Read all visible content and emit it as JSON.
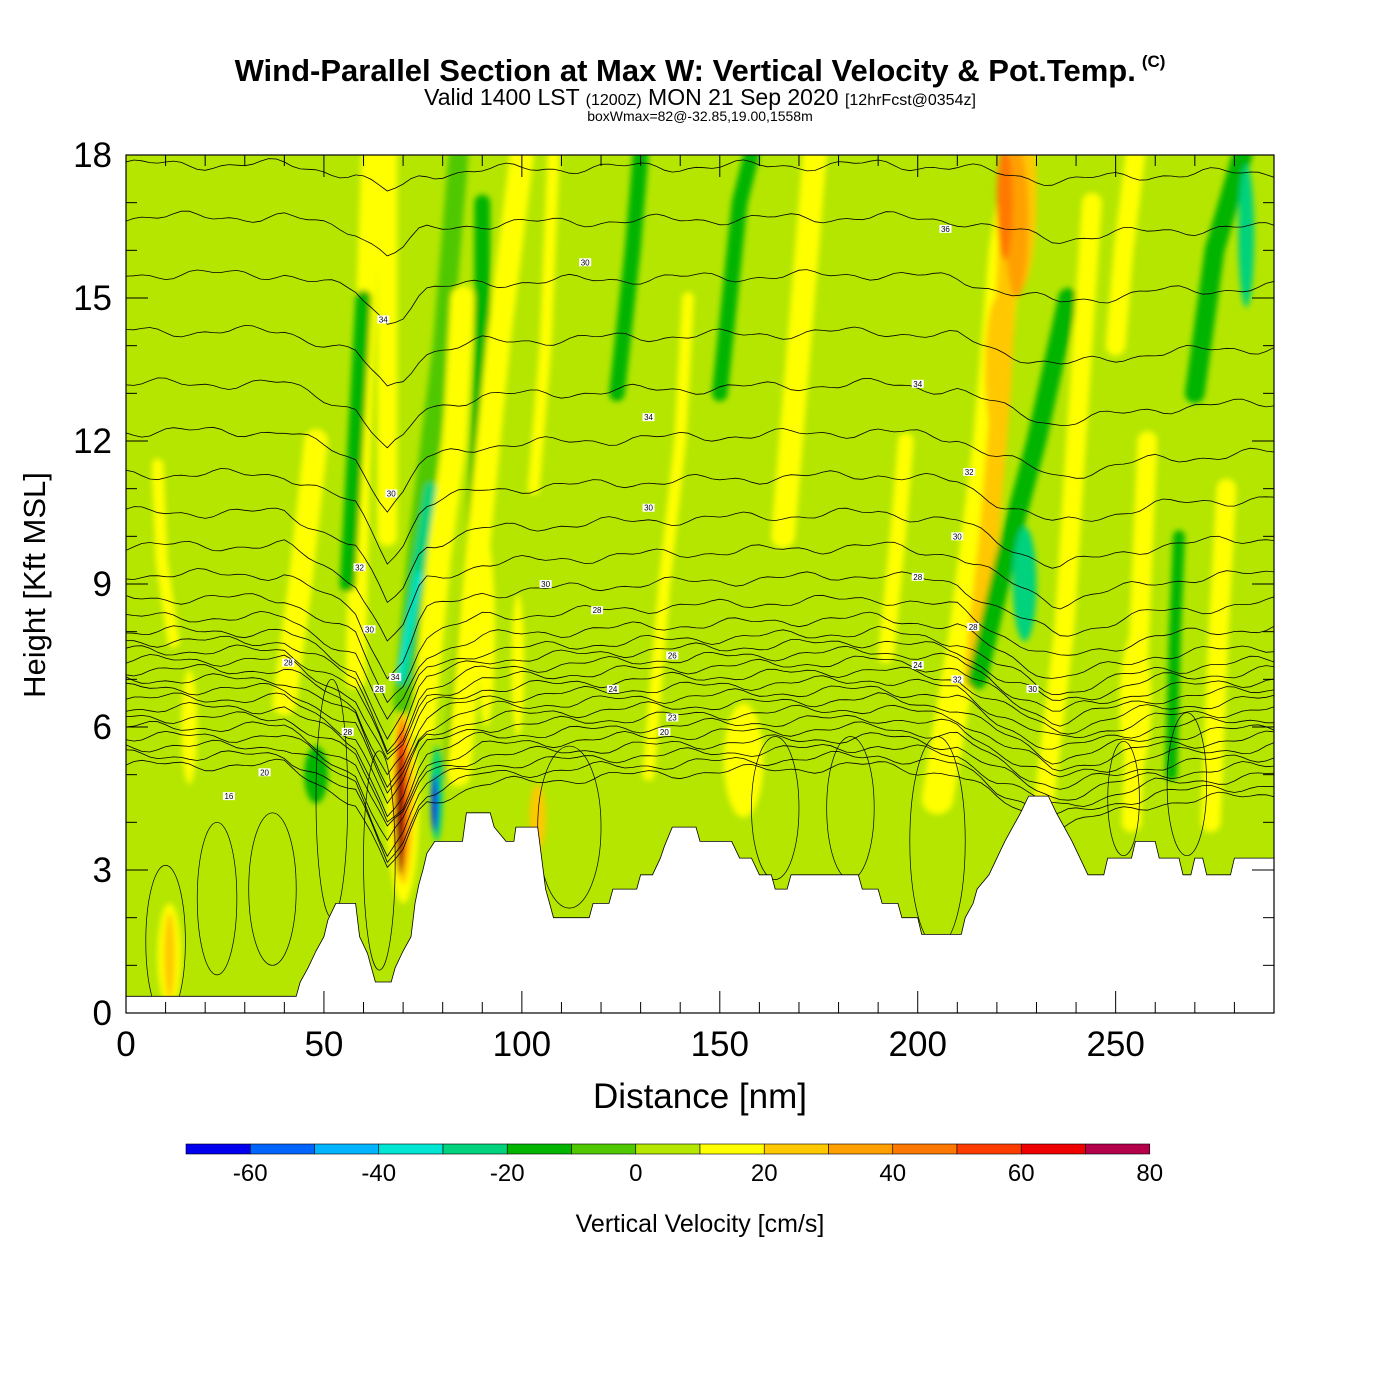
{
  "header": {
    "title": "Wind-Parallel Section at Max W: Vertical Velocity & Pot.Temp.",
    "title_mark": "(C)",
    "valid_prefix": "Valid 1400 LST",
    "valid_zulu": "(1200Z)",
    "valid_date": "MON 21 Sep 2020",
    "forecast": "[12hrFcst@0354z]",
    "box_info": "boxWmax=82@-32.85,19.00,1558m"
  },
  "chart_data": {
    "type": "heatmap",
    "xlabel": "Distance [nm]",
    "ylabel": "Height [Kft MSL]",
    "xlim": [
      0,
      290
    ],
    "ylim": [
      0,
      18
    ],
    "x_ticks": [
      0,
      50,
      100,
      150,
      200,
      250
    ],
    "y_ticks": [
      0,
      3,
      6,
      9,
      12,
      15,
      18
    ],
    "grid": false,
    "background_value": 0,
    "colorbar": {
      "label": "Vertical Velocity [cm/s]",
      "bounds": [
        -70,
        -60,
        -50,
        -40,
        -30,
        -20,
        -10,
        0,
        10,
        20,
        30,
        40,
        50,
        60,
        70,
        80,
        90
      ],
      "tick_values": [
        -60,
        -40,
        -20,
        0,
        20,
        40,
        60,
        80
      ],
      "tick_labels": [
        "-60",
        "-40",
        "-20",
        "0",
        "20",
        "40",
        "60",
        "80"
      ],
      "colors": [
        "#0000ee",
        "#0064ff",
        "#00b4ff",
        "#00e6d2",
        "#00d27d",
        "#00b400",
        "#50c800",
        "#b4e600",
        "#ffff00",
        "#ffc800",
        "#ffa000",
        "#ff7800",
        "#ff3c00",
        "#ee0000",
        "#b4004a"
      ]
    },
    "terrain": [
      [
        0,
        0.35
      ],
      [
        43,
        0.35
      ],
      [
        44,
        0.65
      ],
      [
        46,
        0.95
      ],
      [
        48,
        1.3
      ],
      [
        50,
        1.6
      ],
      [
        51,
        1.95
      ],
      [
        53,
        2.3
      ],
      [
        58,
        2.3
      ],
      [
        59,
        1.6
      ],
      [
        61,
        1.25
      ],
      [
        62,
        0.95
      ],
      [
        63,
        0.65
      ],
      [
        67,
        0.65
      ],
      [
        68,
        0.95
      ],
      [
        70,
        1.3
      ],
      [
        72,
        1.6
      ],
      [
        73,
        2.3
      ],
      [
        74,
        2.7
      ],
      [
        75,
        3.0
      ],
      [
        76,
        3.35
      ],
      [
        78,
        3.6
      ],
      [
        81,
        3.6
      ],
      [
        85,
        3.6
      ],
      [
        86,
        4.2
      ],
      [
        92,
        4.2
      ],
      [
        93,
        3.9
      ],
      [
        96,
        3.6
      ],
      [
        98,
        3.6
      ],
      [
        98.5,
        3.9
      ],
      [
        104,
        3.9
      ],
      [
        106,
        2.6
      ],
      [
        107,
        2.3
      ],
      [
        108,
        2.0
      ],
      [
        117,
        2.0
      ],
      [
        118,
        2.3
      ],
      [
        122,
        2.3
      ],
      [
        123,
        2.6
      ],
      [
        129,
        2.6
      ],
      [
        130,
        2.9
      ],
      [
        133,
        2.9
      ],
      [
        135,
        3.25
      ],
      [
        136,
        3.5
      ],
      [
        138,
        3.9
      ],
      [
        144,
        3.9
      ],
      [
        145,
        3.6
      ],
      [
        153,
        3.6
      ],
      [
        155,
        3.25
      ],
      [
        158,
        3.25
      ],
      [
        160,
        2.9
      ],
      [
        163,
        2.9
      ],
      [
        164,
        2.6
      ],
      [
        167,
        2.6
      ],
      [
        168,
        2.9
      ],
      [
        185,
        2.9
      ],
      [
        186,
        2.6
      ],
      [
        190,
        2.6
      ],
      [
        191,
        2.3
      ],
      [
        195,
        2.3
      ],
      [
        196,
        2.0
      ],
      [
        200,
        2.0
      ],
      [
        201,
        1.65
      ],
      [
        211,
        1.65
      ],
      [
        212,
        2.0
      ],
      [
        214,
        2.3
      ],
      [
        215,
        2.6
      ],
      [
        218,
        2.9
      ],
      [
        220,
        3.25
      ],
      [
        222,
        3.6
      ],
      [
        224,
        3.9
      ],
      [
        226,
        4.2
      ],
      [
        228,
        4.55
      ],
      [
        233,
        4.55
      ],
      [
        235,
        4.2
      ],
      [
        237,
        3.9
      ],
      [
        239,
        3.6
      ],
      [
        241,
        3.25
      ],
      [
        243,
        2.9
      ],
      [
        247,
        2.9
      ],
      [
        248,
        3.25
      ],
      [
        254,
        3.25
      ],
      [
        255,
        3.6
      ],
      [
        260,
        3.6
      ],
      [
        261,
        3.25
      ],
      [
        266,
        3.25
      ],
      [
        267,
        2.9
      ],
      [
        269,
        2.9
      ],
      [
        270,
        3.25
      ],
      [
        272,
        3.25
      ],
      [
        273,
        2.9
      ],
      [
        279,
        2.9
      ],
      [
        280,
        3.25
      ],
      [
        290,
        3.25
      ]
    ],
    "cells": [
      {
        "x": 11,
        "y": 1.2,
        "rx": 3,
        "ry": 1.1,
        "value": 10
      },
      {
        "x": 11,
        "y": 1.2,
        "rx": 1.4,
        "ry": 0.9,
        "value": 20
      },
      {
        "x": 16,
        "y": 6.0,
        "rx": 2,
        "ry": 1.2,
        "value": 10
      },
      {
        "x": 48,
        "y": 5.0,
        "rx": 3,
        "ry": 0.6,
        "value": -15
      },
      {
        "x": 70,
        "y": 4.3,
        "rx": 4,
        "ry": 2.0,
        "value": 10
      },
      {
        "x": 70,
        "y": 4.5,
        "rx": 2.6,
        "ry": 1.8,
        "value": 25
      },
      {
        "x": 69.6,
        "y": 4.6,
        "rx": 1.8,
        "ry": 1.6,
        "value": 45
      },
      {
        "x": 69.4,
        "y": 4.4,
        "rx": 1.2,
        "ry": 1.5,
        "value": 65
      },
      {
        "x": 69.2,
        "y": 4.2,
        "rx": 0.7,
        "ry": 1.3,
        "value": 82
      },
      {
        "x": 78.5,
        "y": 4.6,
        "rx": 1.5,
        "ry": 1.0,
        "value": -30
      },
      {
        "x": 78,
        "y": 4.4,
        "rx": 0.8,
        "ry": 0.6,
        "value": -62
      },
      {
        "x": 91,
        "y": 8.0,
        "rx": 2.2,
        "ry": 2.0,
        "value": 15
      },
      {
        "x": 99,
        "y": 7.3,
        "rx": 1.6,
        "ry": 1.5,
        "value": 15
      },
      {
        "x": 104,
        "y": 4.1,
        "rx": 2.0,
        "ry": 0.7,
        "value": 25
      },
      {
        "x": 156,
        "y": 5.3,
        "rx": 5,
        "ry": 1.2,
        "value": 10
      },
      {
        "x": 166,
        "y": 7.2,
        "rx": 5,
        "ry": 0.4,
        "value": 5
      },
      {
        "x": 226,
        "y": 17.2,
        "rx": 4,
        "ry": 2.0,
        "value": 25
      },
      {
        "x": 225,
        "y": 16.6,
        "rx": 3,
        "ry": 1.6,
        "value": 35
      },
      {
        "x": 222,
        "y": 17.0,
        "rx": 2.0,
        "ry": 1.2,
        "value": 45
      },
      {
        "x": 220,
        "y": 13.5,
        "rx": 3,
        "ry": 1.5,
        "value": 22
      },
      {
        "x": 227,
        "y": 9.0,
        "rx": 3,
        "ry": 1.2,
        "value": -30
      },
      {
        "x": 255,
        "y": 6.5,
        "rx": 4,
        "ry": 1.5,
        "value": 10
      },
      {
        "x": 283,
        "y": 16.3,
        "rx": 2.0,
        "ry": 1.5,
        "value": -25
      }
    ],
    "plumes": [
      {
        "value": 15,
        "width": 3,
        "path": [
          [
            12,
            7.8
          ],
          [
            9,
            9.5
          ],
          [
            8,
            11.5
          ]
        ]
      },
      {
        "value": 10,
        "width": 6,
        "path": [
          [
            40,
            6.5
          ],
          [
            44,
            9
          ],
          [
            48,
            12
          ]
        ]
      },
      {
        "value": 10,
        "width": 5,
        "path": [
          [
            58,
            7
          ],
          [
            59,
            11
          ],
          [
            62,
            18
          ]
        ]
      },
      {
        "value": -15,
        "width": 4,
        "path": [
          [
            56,
            9
          ],
          [
            58,
            12
          ],
          [
            60,
            15
          ]
        ]
      },
      {
        "value": 10,
        "width": 5,
        "path": [
          [
            66,
            10
          ],
          [
            66,
            14
          ],
          [
            66,
            18
          ]
        ]
      },
      {
        "value": -10,
        "width": 5,
        "path": [
          [
            70,
            6.5
          ],
          [
            74,
            10
          ],
          [
            80,
            14
          ],
          [
            84,
            18
          ]
        ]
      },
      {
        "value": -25,
        "width": 3,
        "path": [
          [
            70,
            7
          ],
          [
            74,
            9.5
          ],
          [
            77,
            11
          ]
        ]
      },
      {
        "value": -40,
        "width": 1.4,
        "path": [
          [
            69,
            7
          ],
          [
            72,
            8.3
          ],
          [
            74,
            9.2
          ]
        ]
      },
      {
        "value": 10,
        "width": 6,
        "path": [
          [
            75,
            6
          ],
          [
            79,
            9.5
          ],
          [
            83,
            12
          ],
          [
            85,
            15
          ]
        ]
      },
      {
        "value": -15,
        "width": 4,
        "path": [
          [
            82,
            5
          ],
          [
            88,
            10
          ],
          [
            90,
            14
          ],
          [
            90,
            17
          ]
        ]
      },
      {
        "value": 10,
        "width": 6,
        "path": [
          [
            84,
            5
          ],
          [
            88,
            9
          ],
          [
            94,
            14
          ],
          [
            100,
            18
          ]
        ]
      },
      {
        "value": 10,
        "width": 3,
        "path": [
          [
            103,
            11
          ],
          [
            106,
            14
          ],
          [
            108,
            18
          ]
        ]
      },
      {
        "value": -15,
        "width": 4,
        "path": [
          [
            124,
            13
          ],
          [
            128,
            16
          ],
          [
            130,
            18
          ]
        ]
      },
      {
        "value": 10,
        "width": 3,
        "path": [
          [
            132,
            5
          ],
          [
            136,
            9
          ],
          [
            140,
            12
          ],
          [
            142,
            15
          ]
        ]
      },
      {
        "value": -15,
        "width": 4,
        "path": [
          [
            150,
            13
          ],
          [
            155,
            17
          ],
          [
            158,
            18
          ]
        ]
      },
      {
        "value": 10,
        "width": 6,
        "path": [
          [
            166,
            10
          ],
          [
            170,
            14
          ],
          [
            174,
            18
          ]
        ]
      },
      {
        "value": 10,
        "width": 4,
        "path": [
          [
            192,
            7.5
          ],
          [
            195,
            10
          ],
          [
            197,
            12
          ]
        ]
      },
      {
        "value": 10,
        "width": 8,
        "path": [
          [
            205,
            4.5
          ],
          [
            212,
            8
          ],
          [
            218,
            12
          ],
          [
            222,
            16
          ],
          [
            226,
            18
          ]
        ]
      },
      {
        "value": 20,
        "width": 5,
        "path": [
          [
            214,
            7
          ],
          [
            218,
            10
          ],
          [
            221,
            13
          ],
          [
            224,
            18
          ]
        ]
      },
      {
        "value": -15,
        "width": 5,
        "path": [
          [
            215,
            7
          ],
          [
            222,
            9.5
          ],
          [
            230,
            12
          ],
          [
            238,
            15
          ]
        ]
      },
      {
        "value": 10,
        "width": 5,
        "path": [
          [
            232,
            4.5
          ],
          [
            237,
            8
          ],
          [
            240,
            12
          ],
          [
            244,
            17
          ]
        ]
      },
      {
        "value": 10,
        "width": 5,
        "path": [
          [
            254,
            4
          ],
          [
            256,
            8
          ],
          [
            258,
            12
          ]
        ]
      },
      {
        "value": -15,
        "width": 3,
        "path": [
          [
            264,
            5
          ],
          [
            265,
            8
          ],
          [
            266,
            10
          ]
        ]
      },
      {
        "value": 10,
        "width": 5,
        "path": [
          [
            274,
            4
          ],
          [
            276,
            8
          ],
          [
            278,
            11
          ]
        ]
      },
      {
        "value": -15,
        "width": 5,
        "path": [
          [
            270,
            13
          ],
          [
            275,
            16
          ],
          [
            282,
            18
          ]
        ]
      },
      {
        "value": 10,
        "width": 5,
        "path": [
          [
            250,
            14
          ],
          [
            252,
            16
          ],
          [
            255,
            18
          ]
        ]
      }
    ],
    "isentropes": {
      "baseline": [
        [
          0,
          0.0
        ],
        [
          40,
          0.0
        ],
        [
          58,
          -0.8
        ],
        [
          66,
          -2.2
        ],
        [
          70,
          -1.8
        ],
        [
          75,
          -0.8
        ],
        [
          90,
          -0.4
        ],
        [
          130,
          -0.2
        ],
        [
          190,
          0.0
        ],
        [
          210,
          -0.2
        ],
        [
          220,
          -0.7
        ],
        [
          235,
          -1.3
        ],
        [
          260,
          -0.8
        ],
        [
          290,
          -0.6
        ]
      ],
      "levels": [
        5.2,
        5.4,
        5.6,
        5.8,
        6.0,
        6.2,
        6.4,
        6.6,
        6.8,
        7.0,
        7.2,
        7.4,
        7.6,
        7.8,
        8.0,
        8.3,
        8.7,
        9.2,
        9.8,
        10.5,
        11.3,
        12.2,
        13.2,
        14.3,
        15.5,
        16.7,
        17.8
      ],
      "labels": [
        {
          "x": 26,
          "y": 4.55,
          "text": "16"
        },
        {
          "x": 35,
          "y": 5.05,
          "text": "20"
        },
        {
          "x": 56,
          "y": 5.9,
          "text": "28"
        },
        {
          "x": 41,
          "y": 7.35,
          "text": "28"
        },
        {
          "x": 64,
          "y": 6.8,
          "text": "28"
        },
        {
          "x": 68,
          "y": 7.05,
          "text": "34"
        },
        {
          "x": 61.5,
          "y": 8.05,
          "text": "30"
        },
        {
          "x": 59,
          "y": 9.35,
          "text": "32"
        },
        {
          "x": 67,
          "y": 10.9,
          "text": "30"
        },
        {
          "x": 65,
          "y": 14.55,
          "text": "34"
        },
        {
          "x": 116,
          "y": 15.75,
          "text": "30"
        },
        {
          "x": 132,
          "y": 12.5,
          "text": "34"
        },
        {
          "x": 132,
          "y": 10.6,
          "text": "30"
        },
        {
          "x": 106,
          "y": 9.0,
          "text": "30"
        },
        {
          "x": 119,
          "y": 8.45,
          "text": "28"
        },
        {
          "x": 138,
          "y": 7.5,
          "text": "26"
        },
        {
          "x": 123,
          "y": 6.8,
          "text": "24"
        },
        {
          "x": 138,
          "y": 6.2,
          "text": "23"
        },
        {
          "x": 136,
          "y": 5.9,
          "text": "20"
        },
        {
          "x": 207,
          "y": 16.45,
          "text": "36"
        },
        {
          "x": 200,
          "y": 13.2,
          "text": "34"
        },
        {
          "x": 213,
          "y": 11.35,
          "text": "32"
        },
        {
          "x": 210,
          "y": 10.0,
          "text": "30"
        },
        {
          "x": 200,
          "y": 9.15,
          "text": "28"
        },
        {
          "x": 214,
          "y": 8.1,
          "text": "28"
        },
        {
          "x": 200,
          "y": 7.3,
          "text": "24"
        },
        {
          "x": 210,
          "y": 7.0,
          "text": "32"
        },
        {
          "x": 229,
          "y": 6.8,
          "text": "30"
        }
      ]
    },
    "w_contours": [
      {
        "x": 10,
        "y": 1.5,
        "rx": 5,
        "ry": 1.6
      },
      {
        "x": 23,
        "y": 2.4,
        "rx": 5,
        "ry": 1.6
      },
      {
        "x": 37,
        "y": 2.6,
        "rx": 6,
        "ry": 1.6
      },
      {
        "x": 52,
        "y": 4.5,
        "rx": 4,
        "ry": 2.5
      },
      {
        "x": 64,
        "y": 3.2,
        "rx": 4,
        "ry": 2.3
      },
      {
        "x": 112,
        "y": 3.9,
        "rx": 8,
        "ry": 1.7
      },
      {
        "x": 164,
        "y": 4.3,
        "rx": 6,
        "ry": 1.5
      },
      {
        "x": 183,
        "y": 4.3,
        "rx": 6,
        "ry": 1.5
      },
      {
        "x": 205,
        "y": 3.6,
        "rx": 7,
        "ry": 2.2
      },
      {
        "x": 252,
        "y": 4.5,
        "rx": 4,
        "ry": 1.2
      },
      {
        "x": 268,
        "y": 4.8,
        "rx": 5,
        "ry": 1.5
      }
    ]
  }
}
